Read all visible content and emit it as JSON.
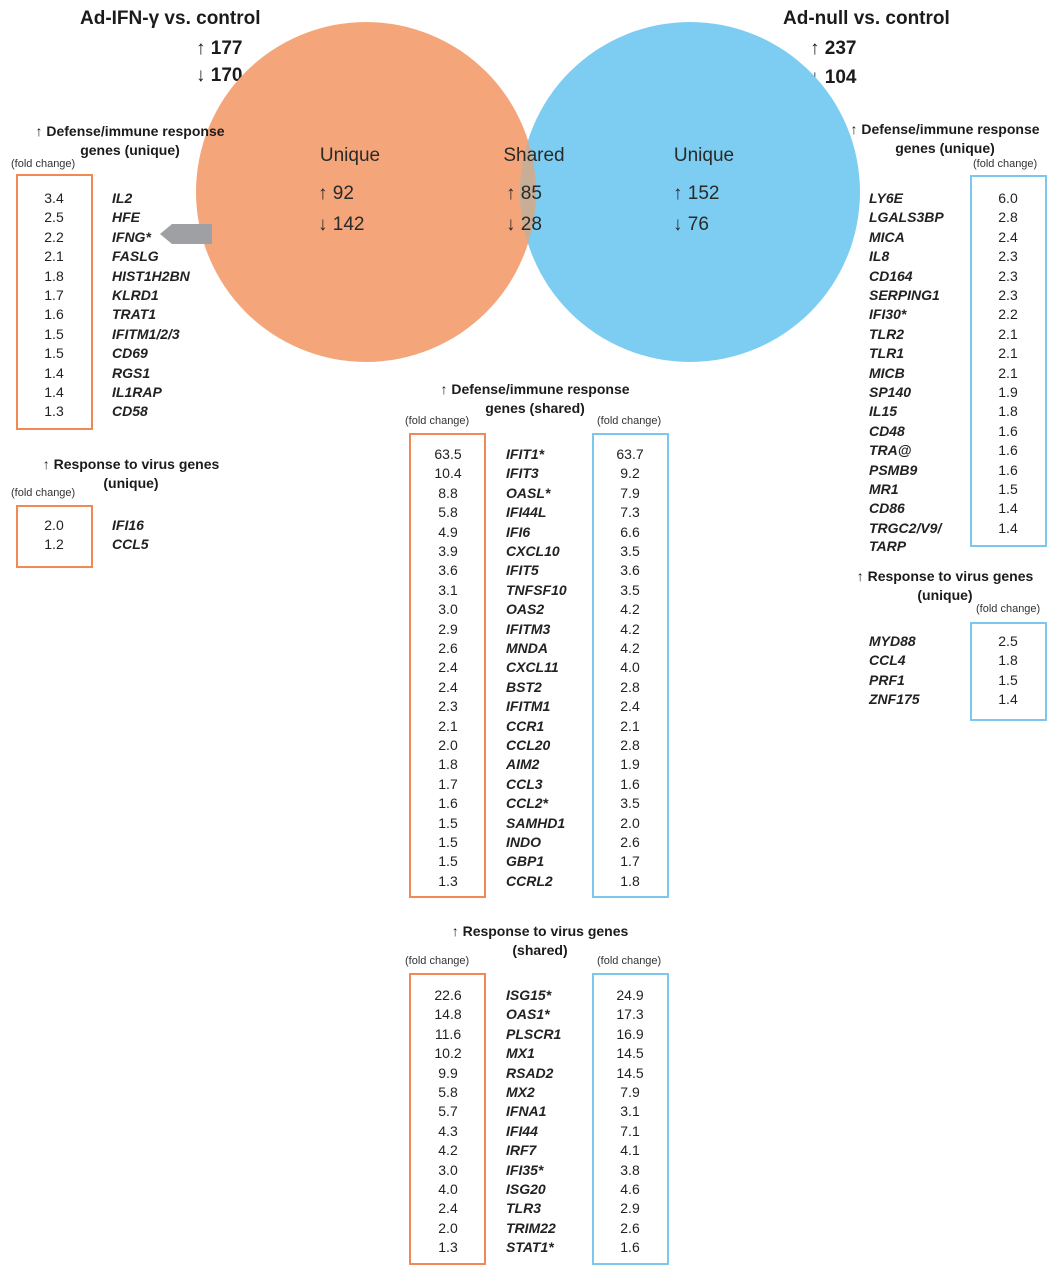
{
  "left_header": {
    "title": "Ad-IFN-γ vs. control",
    "up": "↑ 177",
    "down": "↓ 170"
  },
  "right_header": {
    "title": "Ad-null vs. control",
    "up": "↑ 237",
    "down": "↓ 104"
  },
  "venn": {
    "left": {
      "label": "Unique",
      "up": "↑ 92",
      "down": "↓ 142",
      "color": "#f4a57a"
    },
    "shared": {
      "label": "Shared",
      "up": "↑ 85",
      "down": "↓ 28",
      "color": "#c9ad94"
    },
    "right": {
      "label": "Unique",
      "up": "↑ 152",
      "down": "↓ 76",
      "color": "#7dcdf2"
    }
  },
  "fold_label": "(fold change)",
  "left_defense": {
    "title_line1": "↑ Defense/immune response",
    "title_line2": "genes (unique)",
    "rows": [
      {
        "v": "3.4",
        "g": "IL2"
      },
      {
        "v": "2.5",
        "g": "HFE"
      },
      {
        "v": "2.2",
        "g": "IFNG*"
      },
      {
        "v": "2.1",
        "g": "FASLG"
      },
      {
        "v": "1.8",
        "g": "HIST1H2BN"
      },
      {
        "v": "1.7",
        "g": "KLRD1"
      },
      {
        "v": "1.6",
        "g": "TRAT1"
      },
      {
        "v": "1.5",
        "g": "IFITM1/2/3"
      },
      {
        "v": "1.5",
        "g": "CD69"
      },
      {
        "v": "1.4",
        "g": "RGS1"
      },
      {
        "v": "1.4",
        "g": "IL1RAP"
      },
      {
        "v": "1.3",
        "g": "CD58"
      }
    ]
  },
  "left_virus": {
    "title_line1": "↑ Response to virus genes",
    "title_line2": "(unique)",
    "rows": [
      {
        "v": "2.0",
        "g": "IFI16"
      },
      {
        "v": "1.2",
        "g": "CCL5"
      }
    ]
  },
  "right_defense": {
    "title_line1": "↑ Defense/immune response",
    "title_line2": "genes (unique)",
    "rows": [
      {
        "v": "6.0",
        "g": "LY6E"
      },
      {
        "v": "2.8",
        "g": "LGALS3BP"
      },
      {
        "v": "2.4",
        "g": "MICA"
      },
      {
        "v": "2.3",
        "g": "IL8"
      },
      {
        "v": "2.3",
        "g": "CD164"
      },
      {
        "v": "2.3",
        "g": "SERPING1"
      },
      {
        "v": "2.2",
        "g": "IFI30*"
      },
      {
        "v": "2.1",
        "g": "TLR2"
      },
      {
        "v": "2.1",
        "g": "TLR1"
      },
      {
        "v": "2.1",
        "g": "MICB"
      },
      {
        "v": "1.9",
        "g": "SP140"
      },
      {
        "v": "1.8",
        "g": "IL15"
      },
      {
        "v": "1.6",
        "g": "CD48"
      },
      {
        "v": "1.6",
        "g": "TRA@"
      },
      {
        "v": "1.6",
        "g": "PSMB9"
      },
      {
        "v": "1.5",
        "g": "MR1"
      },
      {
        "v": "1.4",
        "g": "CD86"
      },
      {
        "v": "1.4",
        "g": "TRGC2/V9/"
      }
    ],
    "extra_gene": "TARP"
  },
  "right_virus": {
    "title_line1": "↑ Response to virus genes",
    "title_line2": "(unique)",
    "rows": [
      {
        "v": "2.5",
        "g": "MYD88"
      },
      {
        "v": "1.8",
        "g": "CCL4"
      },
      {
        "v": "1.5",
        "g": "PRF1"
      },
      {
        "v": "1.4",
        "g": "ZNF175"
      }
    ]
  },
  "shared_defense": {
    "title_line1": "↑ Defense/immune response",
    "title_line2": "genes (shared)",
    "rows": [
      {
        "a": "63.5",
        "g": "IFIT1*",
        "b": "63.7"
      },
      {
        "a": "10.4",
        "g": "IFIT3",
        "b": "9.2"
      },
      {
        "a": "8.8",
        "g": "OASL*",
        "b": "7.9"
      },
      {
        "a": "5.8",
        "g": "IFI44L",
        "b": "7.3"
      },
      {
        "a": "4.9",
        "g": "IFI6",
        "b": "6.6"
      },
      {
        "a": "3.9",
        "g": "CXCL10",
        "b": "3.5"
      },
      {
        "a": "3.6",
        "g": "IFIT5",
        "b": "3.6"
      },
      {
        "a": "3.1",
        "g": "TNFSF10",
        "b": "3.5"
      },
      {
        "a": "3.0",
        "g": "OAS2",
        "b": "4.2"
      },
      {
        "a": "2.9",
        "g": "IFITM3",
        "b": "4.2"
      },
      {
        "a": "2.6",
        "g": "MNDA",
        "b": "4.2"
      },
      {
        "a": "2.4",
        "g": "CXCL11",
        "b": "4.0"
      },
      {
        "a": "2.4",
        "g": "BST2",
        "b": "2.8"
      },
      {
        "a": "2.3",
        "g": "IFITM1",
        "b": "2.4"
      },
      {
        "a": "2.1",
        "g": "CCR1",
        "b": "2.1"
      },
      {
        "a": "2.0",
        "g": "CCL20",
        "b": "2.8"
      },
      {
        "a": "1.8",
        "g": "AIM2",
        "b": "1.9"
      },
      {
        "a": "1.7",
        "g": "CCL3",
        "b": "1.6"
      },
      {
        "a": "1.6",
        "g": "CCL2*",
        "b": "3.5"
      },
      {
        "a": "1.5",
        "g": "SAMHD1",
        "b": "2.0"
      },
      {
        "a": "1.5",
        "g": "INDO",
        "b": "2.6"
      },
      {
        "a": "1.5",
        "g": "GBP1",
        "b": "1.7"
      },
      {
        "a": "1.3",
        "g": "CCRL2",
        "b": "1.8"
      }
    ]
  },
  "shared_virus": {
    "title_line1": "↑ Response to virus genes",
    "title_line2": "(shared)",
    "rows": [
      {
        "a": "22.6",
        "g": "ISG15*",
        "b": "24.9"
      },
      {
        "a": "14.8",
        "g": "OAS1*",
        "b": "17.3"
      },
      {
        "a": "11.6",
        "g": "PLSCR1",
        "b": "16.9"
      },
      {
        "a": "10.2",
        "g": "MX1",
        "b": "14.5"
      },
      {
        "a": "9.9",
        "g": "RSAD2",
        "b": "14.5"
      },
      {
        "a": "5.8",
        "g": "MX2",
        "b": "7.9"
      },
      {
        "a": "5.7",
        "g": "IFNA1",
        "b": "3.1"
      },
      {
        "a": "4.3",
        "g": "IFI44",
        "b": "7.1"
      },
      {
        "a": "4.2",
        "g": "IRF7",
        "b": "4.1"
      },
      {
        "a": "3.0",
        "g": "IFI35*",
        "b": "3.8"
      },
      {
        "a": "4.0",
        "g": "ISG20",
        "b": "4.6"
      },
      {
        "a": "2.4",
        "g": "TLR3",
        "b": "2.9"
      },
      {
        "a": "2.0",
        "g": "TRIM22",
        "b": "2.6"
      },
      {
        "a": "1.3",
        "g": "STAT1*",
        "b": "1.6"
      }
    ]
  }
}
